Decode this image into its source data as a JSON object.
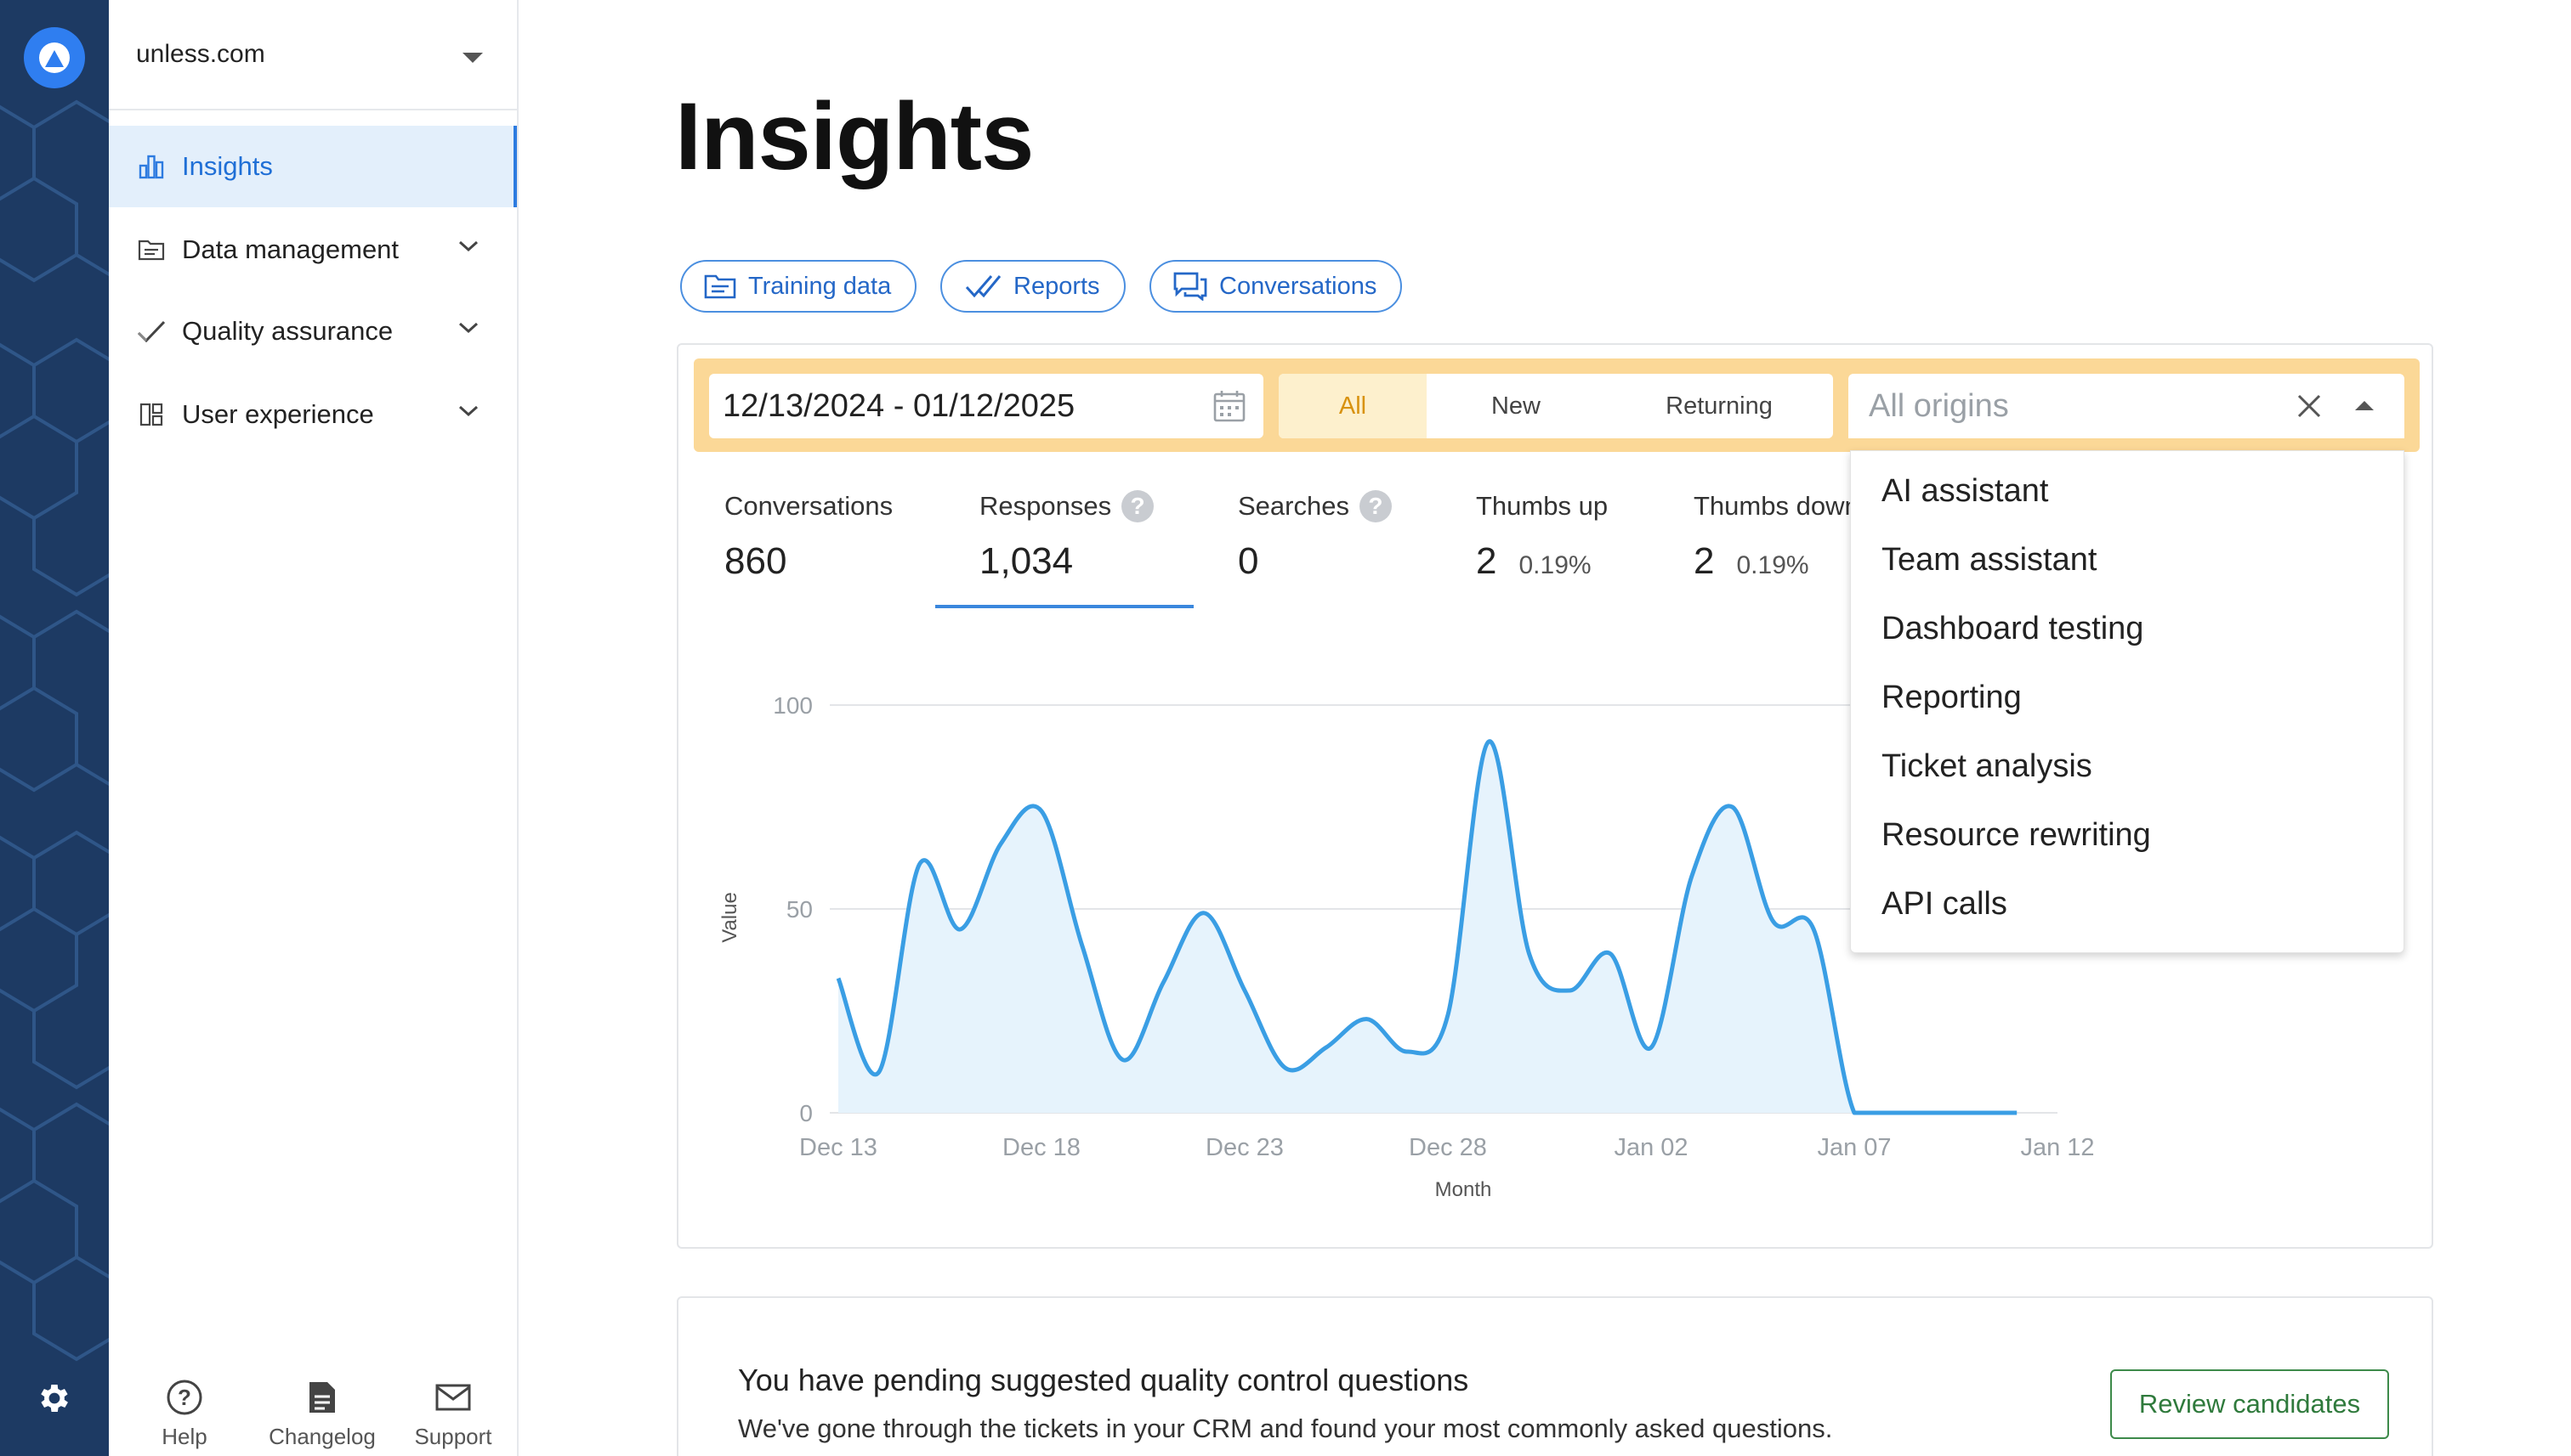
{
  "org": {
    "name": "unless.com"
  },
  "sidebar": {
    "items": [
      {
        "label": "Insights",
        "icon": "bar-chart-icon",
        "active": true
      },
      {
        "label": "Data management",
        "icon": "folder-icon"
      },
      {
        "label": "Quality assurance",
        "icon": "check-icon"
      },
      {
        "label": "User experience",
        "icon": "layout-icon"
      }
    ],
    "footer": [
      {
        "label": "Help",
        "icon": "help-circle-icon"
      },
      {
        "label": "Changelog",
        "icon": "document-icon"
      },
      {
        "label": "Support",
        "icon": "mail-icon"
      }
    ]
  },
  "page": {
    "title": "Insights"
  },
  "tabs": [
    {
      "label": "Training data",
      "icon": "folder-icon"
    },
    {
      "label": "Reports",
      "icon": "double-check-icon"
    },
    {
      "label": "Conversations",
      "icon": "chat-icon"
    }
  ],
  "filters": {
    "date_range": "12/13/2024 - 01/12/2025",
    "segments": [
      "All",
      "New",
      "Returning"
    ],
    "selected_segment": "All",
    "origin_placeholder": "All origins",
    "origin_options": [
      "AI assistant",
      "Team assistant",
      "Dashboard testing",
      "Reporting",
      "Ticket analysis",
      "Resource rewriting",
      "API calls"
    ]
  },
  "stats": [
    {
      "label": "Conversations",
      "value": "860"
    },
    {
      "label": "Responses",
      "value": "1,034",
      "help": "?"
    },
    {
      "label": "Searches",
      "value": "0",
      "help": "?"
    },
    {
      "label": "Thumbs up",
      "value": "2",
      "pct": "0.19%"
    },
    {
      "label": "Thumbs down",
      "value": "2",
      "pct": "0.19%"
    }
  ],
  "chart_data": {
    "type": "area",
    "xlabel": "Month",
    "ylabel": "Value",
    "ylim": [
      0,
      100
    ],
    "yticks": [
      0,
      50,
      100
    ],
    "xticks": [
      "Dec 13",
      "Dec 18",
      "Dec 23",
      "Dec 28",
      "Jan 02",
      "Jan 07",
      "Jan 12"
    ],
    "grid": true,
    "x": [
      "Dec 13",
      "Dec 14",
      "Dec 15",
      "Dec 16",
      "Dec 17",
      "Dec 18",
      "Dec 19",
      "Dec 20",
      "Dec 21",
      "Dec 22",
      "Dec 23",
      "Dec 24",
      "Dec 25",
      "Dec 26",
      "Dec 27",
      "Dec 28",
      "Dec 29",
      "Dec 30",
      "Dec 31",
      "Jan 01",
      "Jan 02",
      "Jan 03",
      "Jan 04",
      "Jan 05",
      "Jan 06",
      "Jan 07",
      "Jan 08",
      "Jan 09",
      "Jan 10",
      "Jan 11"
    ],
    "values": [
      33,
      10,
      61,
      45,
      66,
      74,
      41,
      13,
      32,
      49,
      30,
      11,
      16,
      23,
      15,
      24,
      91,
      39,
      30,
      39,
      16,
      58,
      75,
      47,
      45,
      0,
      0,
      0,
      0,
      0
    ],
    "color": "#3a9ee4",
    "fill": "#e6f3fc"
  },
  "banner": {
    "title": "You have pending suggested quality control questions",
    "text": "We've gone through the tickets in your CRM and found your most commonly asked questions.",
    "button": "Review candidates"
  },
  "colors": {
    "accent": "#2d7be0",
    "filter_bar": "#fbd897",
    "rail": "#1d3a63"
  }
}
